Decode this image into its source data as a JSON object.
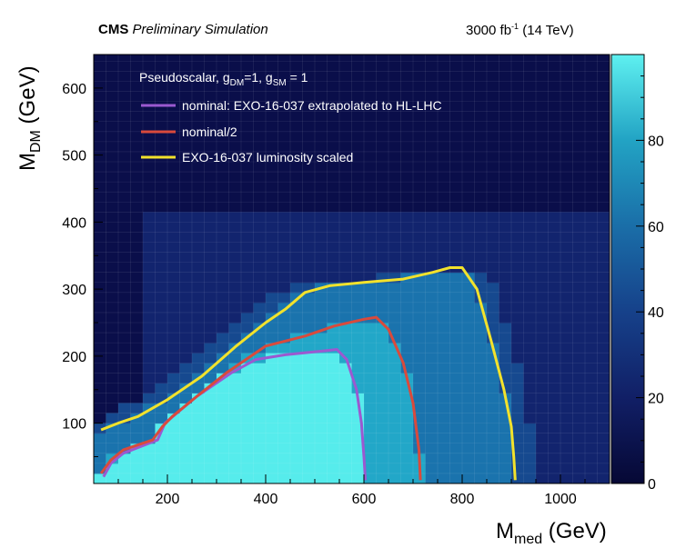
{
  "header": {
    "experiment": "CMS",
    "status": "Preliminary Simulation",
    "lumi_value": "3000 fb",
    "lumi_exp": "-1",
    "energy": "(14 TeV)"
  },
  "chart_data": {
    "type": "heatmap",
    "xlabel": {
      "main": "M",
      "sub": "med",
      "unit": " (GeV)"
    },
    "ylabel": {
      "main": "M",
      "sub": "DM",
      "unit": " (GeV)"
    },
    "xlim": [
      50,
      1100
    ],
    "ylim": [
      10,
      650
    ],
    "x_ticks": [
      200,
      400,
      600,
      800,
      1000
    ],
    "y_ticks": [
      100,
      200,
      300,
      400,
      500,
      600
    ],
    "z_range": [
      0,
      100
    ],
    "z_ticks": [
      0,
      20,
      40,
      60,
      80
    ],
    "colormap": [
      "#0a0e4a",
      "#12246e",
      "#16498f",
      "#1a73ad",
      "#22a7c8",
      "#56ecec"
    ],
    "grid": true,
    "legend": {
      "title": {
        "text": "Pseudoscalar, g",
        "sub1": "DM",
        "mid": "=1, g",
        "sub2": "SM",
        "end": " = 1"
      },
      "entries": [
        {
          "label": "nominal: EXO-16-037 extrapolated to HL-LHC",
          "color": "#9b59d0"
        },
        {
          "label": "nominal/2",
          "color": "#d94a3c"
        },
        {
          "label": "EXO-16-037 luminosity scaled",
          "color": "#f2e22c"
        }
      ]
    },
    "series": [
      {
        "name": "nominal: EXO-16-037 extrapolated to HL-LHC",
        "color": "#9b59d0",
        "points": [
          [
            70,
            20
          ],
          [
            85,
            40
          ],
          [
            110,
            55
          ],
          [
            180,
            75
          ],
          [
            195,
            100
          ],
          [
            260,
            140
          ],
          [
            330,
            175
          ],
          [
            380,
            195
          ],
          [
            440,
            202
          ],
          [
            520,
            208
          ],
          [
            545,
            210
          ],
          [
            565,
            195
          ],
          [
            585,
            150
          ],
          [
            595,
            100
          ],
          [
            600,
            50
          ],
          [
            603,
            15
          ]
        ]
      },
      {
        "name": "nominal/2",
        "color": "#d94a3c",
        "points": [
          [
            65,
            25
          ],
          [
            85,
            45
          ],
          [
            110,
            60
          ],
          [
            170,
            75
          ],
          [
            190,
            95
          ],
          [
            210,
            110
          ],
          [
            260,
            140
          ],
          [
            320,
            175
          ],
          [
            400,
            215
          ],
          [
            480,
            230
          ],
          [
            540,
            245
          ],
          [
            600,
            255
          ],
          [
            625,
            258
          ],
          [
            650,
            240
          ],
          [
            680,
            190
          ],
          [
            700,
            130
          ],
          [
            712,
            60
          ],
          [
            715,
            15
          ]
        ]
      },
      {
        "name": "EXO-16-037 luminosity scaled",
        "color": "#f2e22c",
        "points": [
          [
            65,
            90
          ],
          [
            100,
            100
          ],
          [
            140,
            110
          ],
          [
            200,
            135
          ],
          [
            270,
            170
          ],
          [
            340,
            215
          ],
          [
            400,
            250
          ],
          [
            440,
            270
          ],
          [
            480,
            295
          ],
          [
            530,
            305
          ],
          [
            600,
            310
          ],
          [
            680,
            315
          ],
          [
            740,
            325
          ],
          [
            775,
            332
          ],
          [
            800,
            332
          ],
          [
            830,
            300
          ],
          [
            860,
            220
          ],
          [
            885,
            150
          ],
          [
            900,
            95
          ],
          [
            905,
            50
          ],
          [
            908,
            15
          ]
        ]
      }
    ]
  }
}
